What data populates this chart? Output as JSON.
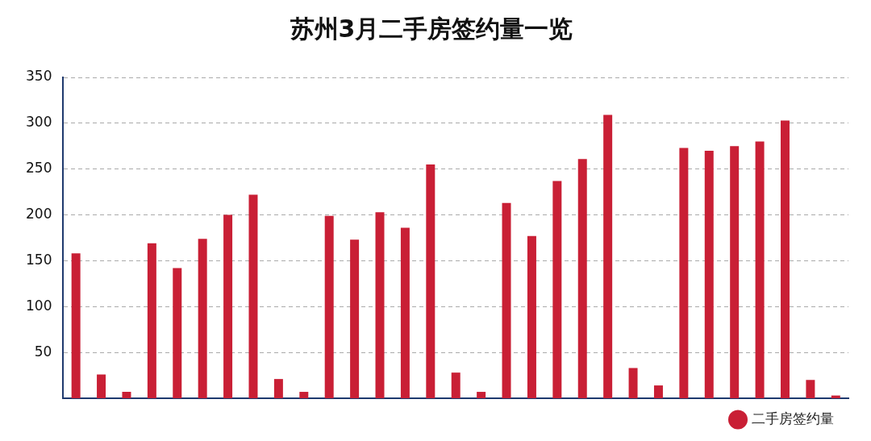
{
  "chart_data": {
    "type": "bar",
    "title": "苏州3月二手房签约量一览",
    "categories": [
      null,
      null,
      null,
      null,
      null,
      null,
      null,
      null,
      null,
      null,
      null,
      null,
      null,
      null,
      null,
      null,
      null,
      null,
      null,
      null,
      null,
      null,
      null,
      null,
      null,
      null,
      null,
      null,
      null,
      null,
      null
    ],
    "series": [
      {
        "name": "二手房签约量",
        "color": "#c91f35",
        "values": [
          158,
          26,
          7,
          169,
          142,
          174,
          200,
          222,
          21,
          7,
          199,
          173,
          203,
          186,
          255,
          28,
          7,
          213,
          177,
          237,
          261,
          309,
          33,
          14,
          273,
          270,
          275,
          280,
          303,
          20,
          3
        ]
      }
    ],
    "ylim": [
      0,
      350
    ],
    "yticks": [
      50,
      100,
      150,
      200,
      250,
      300,
      350
    ],
    "grid": "y",
    "legend": "bottom right"
  }
}
